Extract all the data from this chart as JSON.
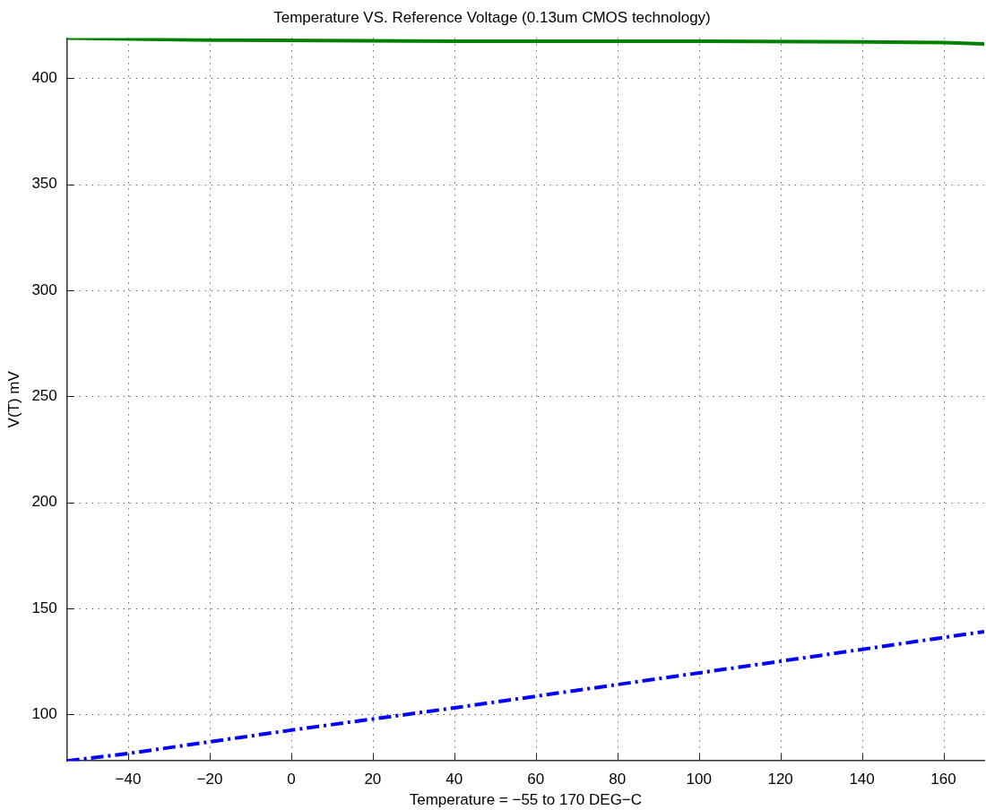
{
  "chart_data": {
    "type": "line",
    "title": "Temperature VS. Reference Voltage (0.13um CMOS technology)",
    "xlabel": "Temperature = −55 to 170 DEG−C",
    "ylabel": "V(T) mV",
    "xlim": [
      -55,
      170
    ],
    "xticks": [
      -40,
      -20,
      0,
      20,
      40,
      60,
      80,
      100,
      120,
      140,
      160
    ],
    "ylim": [
      78,
      419
    ],
    "yticks": [
      100,
      150,
      200,
      250,
      300,
      350,
      400
    ],
    "grid": true,
    "legend": false,
    "marker": "none",
    "series": [
      {
        "color": "#008000",
        "line_style": "solid",
        "x": [
          -55,
          -20,
          40,
          100,
          140,
          160,
          170
        ],
        "values": [
          419,
          418,
          417.5,
          417.5,
          417.2,
          416.8,
          416.2
        ]
      },
      {
        "color": "#0000ff",
        "line_style": "dashdot",
        "x": [
          -55,
          -40,
          0,
          40,
          80,
          120,
          170
        ],
        "values": [
          78,
          81.5,
          92.5,
          103,
          114,
          125,
          139
        ]
      }
    ]
  }
}
